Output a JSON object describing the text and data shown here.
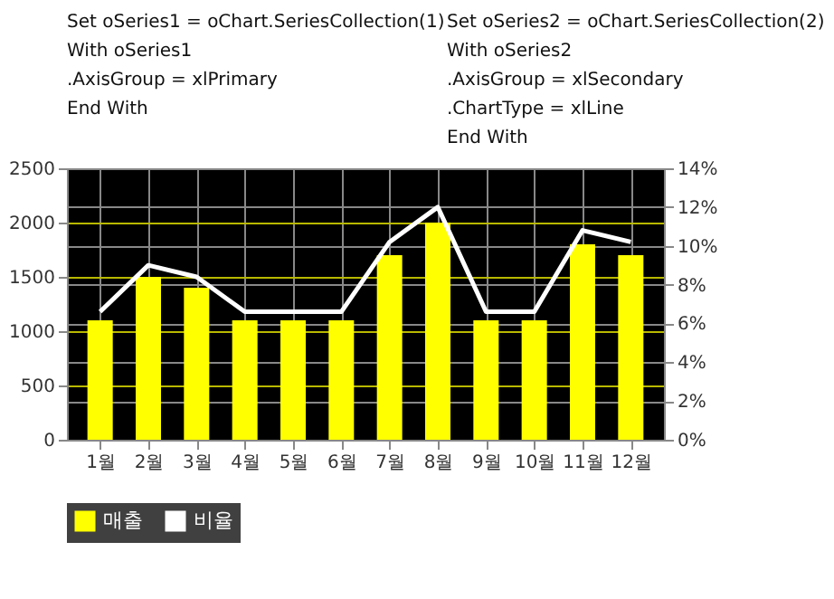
{
  "chart_data": {
    "type": "bar",
    "categories": [
      "1월",
      "2월",
      "3월",
      "4월",
      "5월",
      "6월",
      "7월",
      "8월",
      "9월",
      "10월",
      "11월",
      "12월"
    ],
    "series": [
      {
        "name": "매출",
        "color": "#ffff00",
        "values": [
          1100,
          1500,
          1400,
          1100,
          1100,
          1100,
          1700,
          2000,
          1100,
          1100,
          1800,
          1700
        ]
      },
      {
        "name": "비율",
        "type": "line",
        "axis": "y2",
        "color": "#ffffff",
        "values": [
          6.6,
          9.0,
          8.4,
          6.6,
          6.6,
          6.6,
          10.2,
          12.0,
          6.6,
          6.6,
          10.8,
          10.2
        ]
      }
    ],
    "ylim": [
      0,
      2500
    ],
    "yticks": [
      0,
      500,
      1000,
      1500,
      2000,
      2500
    ],
    "y2lim": [
      0,
      14
    ],
    "y2ticks": [
      {
        "value": 0,
        "label": "0%"
      },
      {
        "value": 2,
        "label": "2%"
      },
      {
        "value": 4,
        "label": "4%"
      },
      {
        "value": 6,
        "label": "6%"
      },
      {
        "value": 8,
        "label": "8%"
      },
      {
        "value": 10,
        "label": "10%"
      },
      {
        "value": 12,
        "label": "12%"
      },
      {
        "value": 14,
        "label": "14%"
      }
    ],
    "grid": true,
    "legend": "bottom",
    "marker": "none",
    "line_style": "solid",
    "annotations": [
      "Set oSeries1 = oChart.SeriesCollection(1)",
      "With oSeries1",
      "    .AxisGroup = xlPrimary",
      "End With",
      "Set oSeries2 = oChart.SeriesCollection(2)",
      "With oSeries2",
      "    .AxisGroup = xlSecondary",
      "    .ChartType = xlLine",
      "End With"
    ]
  }
}
